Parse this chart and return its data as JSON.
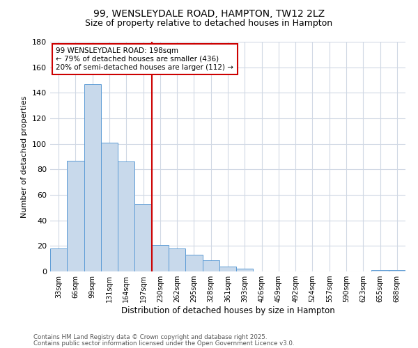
{
  "title_line1": "99, WENSLEYDALE ROAD, HAMPTON, TW12 2LZ",
  "title_line2": "Size of property relative to detached houses in Hampton",
  "xlabel": "Distribution of detached houses by size in Hampton",
  "ylabel": "Number of detached properties",
  "footnote1": "Contains HM Land Registry data © Crown copyright and database right 2025.",
  "footnote2": "Contains public sector information licensed under the Open Government Licence v3.0.",
  "annotation_line1": "99 WENSLEYDALE ROAD: 198sqm",
  "annotation_line2": "← 79% of detached houses are smaller (436)",
  "annotation_line3": "20% of semi-detached houses are larger (112) →",
  "bar_labels": [
    "33sqm",
    "66sqm",
    "99sqm",
    "131sqm",
    "164sqm",
    "197sqm",
    "230sqm",
    "262sqm",
    "295sqm",
    "328sqm",
    "361sqm",
    "393sqm",
    "426sqm",
    "459sqm",
    "492sqm",
    "524sqm",
    "557sqm",
    "590sqm",
    "623sqm",
    "655sqm",
    "688sqm"
  ],
  "bar_values": [
    18,
    87,
    147,
    101,
    86,
    53,
    21,
    18,
    13,
    9,
    4,
    2,
    0,
    0,
    0,
    0,
    0,
    0,
    0,
    1,
    1
  ],
  "bar_color": "#c8d9eb",
  "bar_edge_color": "#5b9bd5",
  "vline_x": 5.5,
  "vline_color": "#cc0000",
  "annotation_box_color": "#cc0000",
  "background_color": "#ffffff",
  "grid_color": "#d0d8e4",
  "ylim": [
    0,
    180
  ],
  "yticks": [
    0,
    20,
    40,
    60,
    80,
    100,
    120,
    140,
    160,
    180
  ]
}
